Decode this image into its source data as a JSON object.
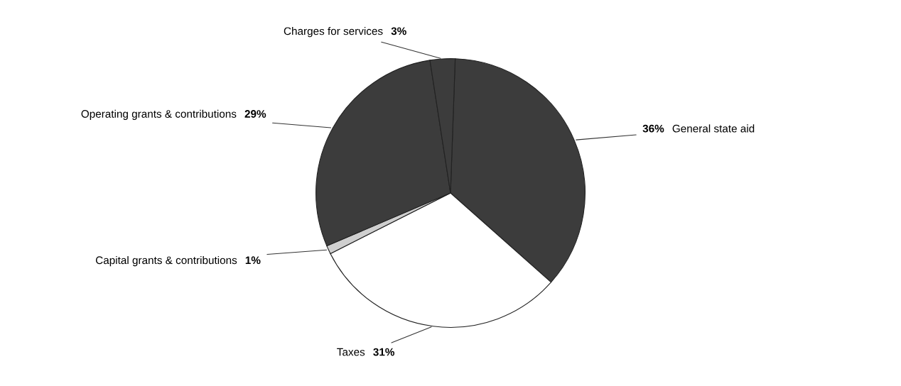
{
  "chart_data": {
    "type": "pie",
    "categories": [
      "General state aid",
      "Taxes",
      "Capital grants & contributions",
      "Operating grants & contributions",
      "Charges for services"
    ],
    "values": [
      36,
      31,
      1,
      29,
      3
    ],
    "value_labels": [
      "36%",
      "31%",
      "1%",
      "29%",
      "3%"
    ],
    "colors": [
      "#3c3c3c",
      "#ffffff",
      "#cfcfcf",
      "#3c3c3c",
      "#3c3c3c"
    ],
    "legend": false
  }
}
